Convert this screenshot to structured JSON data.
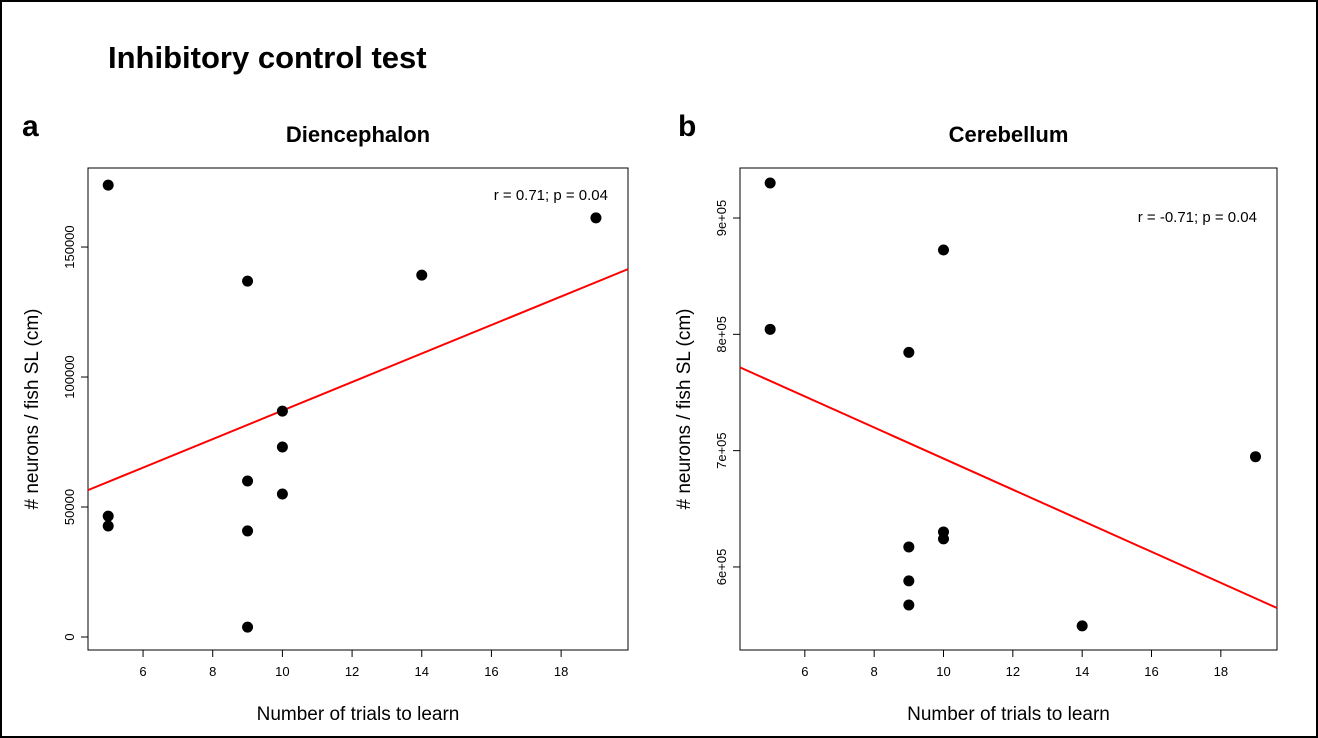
{
  "figure_title": "Inhibitory control test",
  "panel_labels": [
    "a",
    "b"
  ],
  "chart_data": [
    {
      "type": "scatter",
      "title": "Diencephalon",
      "x_label": "Number of trials to learn",
      "y_label": "# neurons / fish SL (cm)",
      "annotation": "r = 0.71; p = 0.04",
      "series": [
        {
          "name": null,
          "color": "#000000",
          "x": [
            5,
            5,
            5,
            9,
            9,
            9,
            9,
            10,
            10,
            10,
            14,
            19
          ],
          "values": [
            173800,
            46500,
            42700,
            136900,
            60000,
            40800,
            3800,
            86900,
            73100,
            55000,
            139200,
            161200
          ]
        }
      ],
      "trend_line": {
        "color": "#ff0000",
        "x": [
          4.42,
          19.92
        ],
        "values": [
          56500,
          141500
        ]
      },
      "xlim": [
        4.42,
        19.92
      ],
      "xticks": [
        6,
        8,
        10,
        12,
        14,
        16,
        18
      ],
      "ylim": [
        -5000,
        180400
      ],
      "yticks": [
        0,
        50000,
        100000,
        150000
      ]
    },
    {
      "type": "scatter",
      "title": "Cerebellum",
      "x_label": "Number of trials to learn",
      "y_label": "# neurons / fish SL (cm)",
      "annotation": "r = -0.71; p = 0.04",
      "series": [
        {
          "name": null,
          "color": "#000000",
          "x": [
            5,
            5,
            9,
            9,
            9,
            9,
            10,
            10,
            10,
            14,
            19
          ],
          "values": [
            930100,
            804300,
            784500,
            617200,
            588000,
            567300,
            872500,
            630100,
            624100,
            549300,
            694800
          ]
        }
      ],
      "trend_line": {
        "color": "#ff0000",
        "x": [
          4.13,
          19.62
        ],
        "values": [
          771600,
          564700
        ]
      },
      "xlim": [
        4.13,
        19.62
      ],
      "xticks": [
        6,
        8,
        10,
        12,
        14,
        16,
        18
      ],
      "ylim": [
        528600,
        943000
      ],
      "yticks": [
        {
          "value": 600000,
          "label": "6e+05"
        },
        {
          "value": 700000,
          "label": "7e+05"
        },
        {
          "value": 800000,
          "label": "8e+05"
        },
        {
          "value": 900000,
          "label": "9e+05"
        }
      ]
    }
  ]
}
